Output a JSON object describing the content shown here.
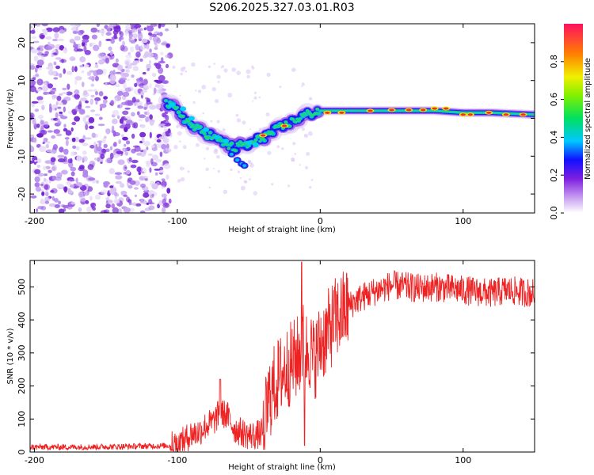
{
  "title": "S206.2025.327.03.01.R03",
  "chart_data": [
    {
      "type": "heatmap",
      "xlabel": "Height of straight line (km)",
      "ylabel": "Frequency (Hz)",
      "xlim": [
        -203,
        150
      ],
      "ylim": [
        -25,
        25
      ],
      "x_ticks": [
        -200,
        -100,
        0,
        100
      ],
      "y_ticks": [
        -20,
        -10,
        0,
        10,
        20
      ],
      "colorbar": {
        "label": "Normalized spectral amplitude",
        "range": [
          0,
          1
        ],
        "ticks": [
          "0.0",
          "0.2",
          "0.4",
          "0.6",
          "0.8"
        ]
      },
      "track": {
        "x": [
          -108,
          -100,
          -90,
          -80,
          -70,
          -60,
          -55,
          -50,
          -45,
          -40,
          -35,
          -30,
          -25,
          -20,
          -15,
          -10,
          -5,
          0,
          10,
          20,
          40,
          60,
          80,
          100,
          120,
          150
        ],
        "y": [
          4,
          2,
          -2,
          -4,
          -6,
          -8,
          -7,
          -7,
          -6,
          -5,
          -4,
          -3,
          -2,
          -1,
          0,
          1,
          1.5,
          2,
          2,
          2,
          2,
          2,
          2,
          1.5,
          1.5,
          1
        ]
      },
      "noise_region_x": [
        -203,
        -105
      ]
    },
    {
      "type": "line",
      "xlabel": "Height of straight line (km)",
      "ylabel": "SNR (10 * v/v)",
      "xlim": [
        -203,
        150
      ],
      "ylim": [
        0,
        580
      ],
      "x_ticks": [
        -200,
        -100,
        0,
        100
      ],
      "y_ticks": [
        0,
        100,
        200,
        300,
        400,
        500
      ],
      "color": "#ee2222",
      "series": [
        {
          "name": "SNR",
          "x": [
            -203,
            -180,
            -150,
            -120,
            -100,
            -95,
            -90,
            -85,
            -80,
            -75,
            -70,
            -65,
            -60,
            -55,
            -50,
            -45,
            -40,
            -36,
            -32,
            -28,
            -25,
            -20,
            -15,
            -12,
            -10,
            -8,
            -5,
            -2,
            0,
            5,
            10,
            15,
            20,
            25,
            30,
            40,
            50,
            60,
            70,
            80,
            90,
            100,
            110,
            120,
            130,
            140,
            150
          ],
          "values": [
            15,
            15,
            16,
            18,
            20,
            35,
            55,
            60,
            80,
            90,
            120,
            110,
            70,
            60,
            50,
            50,
            60,
            160,
            200,
            230,
            250,
            270,
            290,
            330,
            300,
            320,
            280,
            300,
            330,
            360,
            400,
            420,
            440,
            460,
            470,
            490,
            505,
            500,
            495,
            500,
            495,
            490,
            485,
            480,
            490,
            485,
            480
          ]
        }
      ]
    }
  ]
}
